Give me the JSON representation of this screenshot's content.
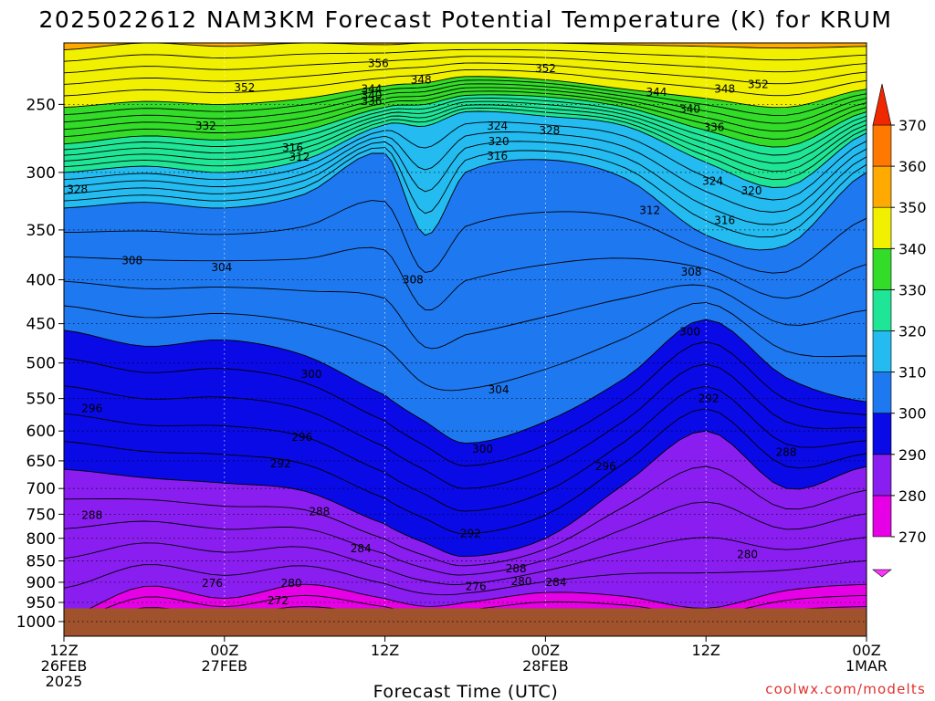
{
  "chart_data": {
    "type": "heatmap",
    "title": "2025022612 NAM3KM Forecast Potential Temperature (K) for KRUM",
    "xlabel": "Forecast Time (UTC)",
    "ylabel": "",
    "credit": "coolwx.com/modelts",
    "y_scale": "log-pressure",
    "ylim": [
      1040,
      212
    ],
    "x_range_hours": [
      0,
      60
    ],
    "y_ticks": [
      250,
      300,
      350,
      400,
      450,
      500,
      550,
      600,
      650,
      700,
      750,
      800,
      850,
      900,
      950,
      1000
    ],
    "x_ticks": [
      {
        "hour": 0,
        "lines": [
          "12Z",
          "26FEB",
          "2025"
        ]
      },
      {
        "hour": 12,
        "lines": [
          "00Z",
          "27FEB"
        ]
      },
      {
        "hour": 24,
        "lines": [
          "12Z"
        ]
      },
      {
        "hour": 36,
        "lines": [
          "00Z",
          "28FEB"
        ]
      },
      {
        "hour": 48,
        "lines": [
          "12Z"
        ]
      },
      {
        "hour": 60,
        "lines": [
          "00Z",
          "1MAR"
        ]
      }
    ],
    "colorbar": {
      "ticks": [
        270,
        280,
        290,
        300,
        310,
        320,
        330,
        340,
        350,
        360,
        370
      ],
      "bands": [
        {
          "from": 262,
          "to": 270,
          "color": "#ff33ff"
        },
        {
          "from": 270,
          "to": 280,
          "color": "#e600e6"
        },
        {
          "from": 280,
          "to": 290,
          "color": "#8a1ef0"
        },
        {
          "from": 290,
          "to": 300,
          "color": "#0a0ae6"
        },
        {
          "from": 300,
          "to": 310,
          "color": "#1e78f0"
        },
        {
          "from": 310,
          "to": 320,
          "color": "#23bbf0"
        },
        {
          "from": 320,
          "to": 330,
          "color": "#1ee696"
        },
        {
          "from": 330,
          "to": 340,
          "color": "#32dc28"
        },
        {
          "from": 340,
          "to": 350,
          "color": "#f0f000"
        },
        {
          "from": 350,
          "to": 360,
          "color": "#ffaa00"
        },
        {
          "from": 360,
          "to": 370,
          "color": "#ff7800"
        },
        {
          "from": 370,
          "to": 378,
          "color": "#f02800"
        }
      ]
    },
    "ground_color": "#a0522d",
    "surface_pressure": 965,
    "contour_interval_K": 2,
    "profile_hours": [
      0,
      6,
      12,
      18,
      24,
      27,
      30,
      36,
      42,
      48,
      54,
      60
    ],
    "theta_levels_K": [
      270,
      280,
      290,
      300,
      310,
      320,
      330,
      340,
      350
    ],
    "theta_level_pressure_hPa": [
      [
        1050,
        990,
        665,
        458,
        330,
        300,
        278,
        252,
        216
      ],
      [
        1050,
        910,
        680,
        478,
        325,
        295,
        272,
        248,
        212
      ],
      [
        1050,
        940,
        690,
        470,
        330,
        300,
        275,
        250,
        214
      ],
      [
        1050,
        905,
        705,
        490,
        318,
        290,
        268,
        246,
        212
      ],
      [
        1050,
        940,
        770,
        545,
        285,
        264,
        252,
        238,
        213
      ],
      [
        1050,
        960,
        810,
        585,
        355,
        265,
        250,
        236,
        212
      ],
      [
        1050,
        950,
        840,
        620,
        300,
        255,
        244,
        232,
        212
      ],
      [
        1050,
        925,
        800,
        585,
        290,
        258,
        245,
        234,
        212
      ],
      [
        1050,
        935,
        690,
        520,
        305,
        265,
        252,
        240,
        213
      ],
      [
        1050,
        965,
        600,
        445,
        355,
        292,
        268,
        246,
        214
      ],
      [
        1050,
        920,
        700,
        520,
        365,
        312,
        280,
        252,
        215
      ],
      [
        1050,
        905,
        660,
        555,
        300,
        270,
        255,
        240,
        214
      ]
    ],
    "contour_labels": [
      {
        "hour": 23.5,
        "p": 224,
        "text": "356"
      },
      {
        "hour": 26.7,
        "p": 234,
        "text": "348"
      },
      {
        "hour": 36,
        "p": 227,
        "text": "352"
      },
      {
        "hour": 13.5,
        "p": 239,
        "text": "352"
      },
      {
        "hour": 23,
        "p": 240,
        "text": "344"
      },
      {
        "hour": 23,
        "p": 244,
        "text": "340"
      },
      {
        "hour": 23,
        "p": 248,
        "text": "336"
      },
      {
        "hour": 51.9,
        "p": 237,
        "text": "352"
      },
      {
        "hour": 49.4,
        "p": 240,
        "text": "348"
      },
      {
        "hour": 44.3,
        "p": 242,
        "text": "344"
      },
      {
        "hour": 46.8,
        "p": 253,
        "text": "340"
      },
      {
        "hour": 48.6,
        "p": 266,
        "text": "336"
      },
      {
        "hour": 10.6,
        "p": 265,
        "text": "332"
      },
      {
        "hour": 32.4,
        "p": 265,
        "text": "324"
      },
      {
        "hour": 36.3,
        "p": 268,
        "text": "328"
      },
      {
        "hour": 32.5,
        "p": 276,
        "text": "320"
      },
      {
        "hour": 32.4,
        "p": 287,
        "text": "316"
      },
      {
        "hour": 17.1,
        "p": 281,
        "text": "316"
      },
      {
        "hour": 17.6,
        "p": 288,
        "text": "312"
      },
      {
        "hour": 1.0,
        "p": 314,
        "text": "328"
      },
      {
        "hour": 48.5,
        "p": 307,
        "text": "324"
      },
      {
        "hour": 51.4,
        "p": 315,
        "text": "320"
      },
      {
        "hour": 49.4,
        "p": 341,
        "text": "316"
      },
      {
        "hour": 43.8,
        "p": 332,
        "text": "312"
      },
      {
        "hour": 5.1,
        "p": 380,
        "text": "308"
      },
      {
        "hour": 11.8,
        "p": 387,
        "text": "304"
      },
      {
        "hour": 26.1,
        "p": 400,
        "text": "308"
      },
      {
        "hour": 46.9,
        "p": 392,
        "text": "308"
      },
      {
        "hour": 46.8,
        "p": 460,
        "text": "300"
      },
      {
        "hour": 18.5,
        "p": 515,
        "text": "300"
      },
      {
        "hour": 32.5,
        "p": 537,
        "text": "304"
      },
      {
        "hour": 48.2,
        "p": 550,
        "text": "292"
      },
      {
        "hour": 2.1,
        "p": 565,
        "text": "296"
      },
      {
        "hour": 17.8,
        "p": 610,
        "text": "296"
      },
      {
        "hour": 31.3,
        "p": 630,
        "text": "300"
      },
      {
        "hour": 40.5,
        "p": 660,
        "text": "296"
      },
      {
        "hour": 16.2,
        "p": 655,
        "text": "292"
      },
      {
        "hour": 54,
        "p": 635,
        "text": "288"
      },
      {
        "hour": 2.1,
        "p": 752,
        "text": "288"
      },
      {
        "hour": 19.1,
        "p": 745,
        "text": "288"
      },
      {
        "hour": 30.4,
        "p": 790,
        "text": "292"
      },
      {
        "hour": 22.2,
        "p": 822,
        "text": "284"
      },
      {
        "hour": 33.8,
        "p": 868,
        "text": "288"
      },
      {
        "hour": 51.1,
        "p": 835,
        "text": "280"
      },
      {
        "hour": 11.1,
        "p": 902,
        "text": "276"
      },
      {
        "hour": 17.0,
        "p": 902,
        "text": "280"
      },
      {
        "hour": 30.8,
        "p": 910,
        "text": "276"
      },
      {
        "hour": 34.2,
        "p": 898,
        "text": "280"
      },
      {
        "hour": 36.8,
        "p": 900,
        "text": "284"
      },
      {
        "hour": 16.0,
        "p": 945,
        "text": "272"
      }
    ]
  }
}
